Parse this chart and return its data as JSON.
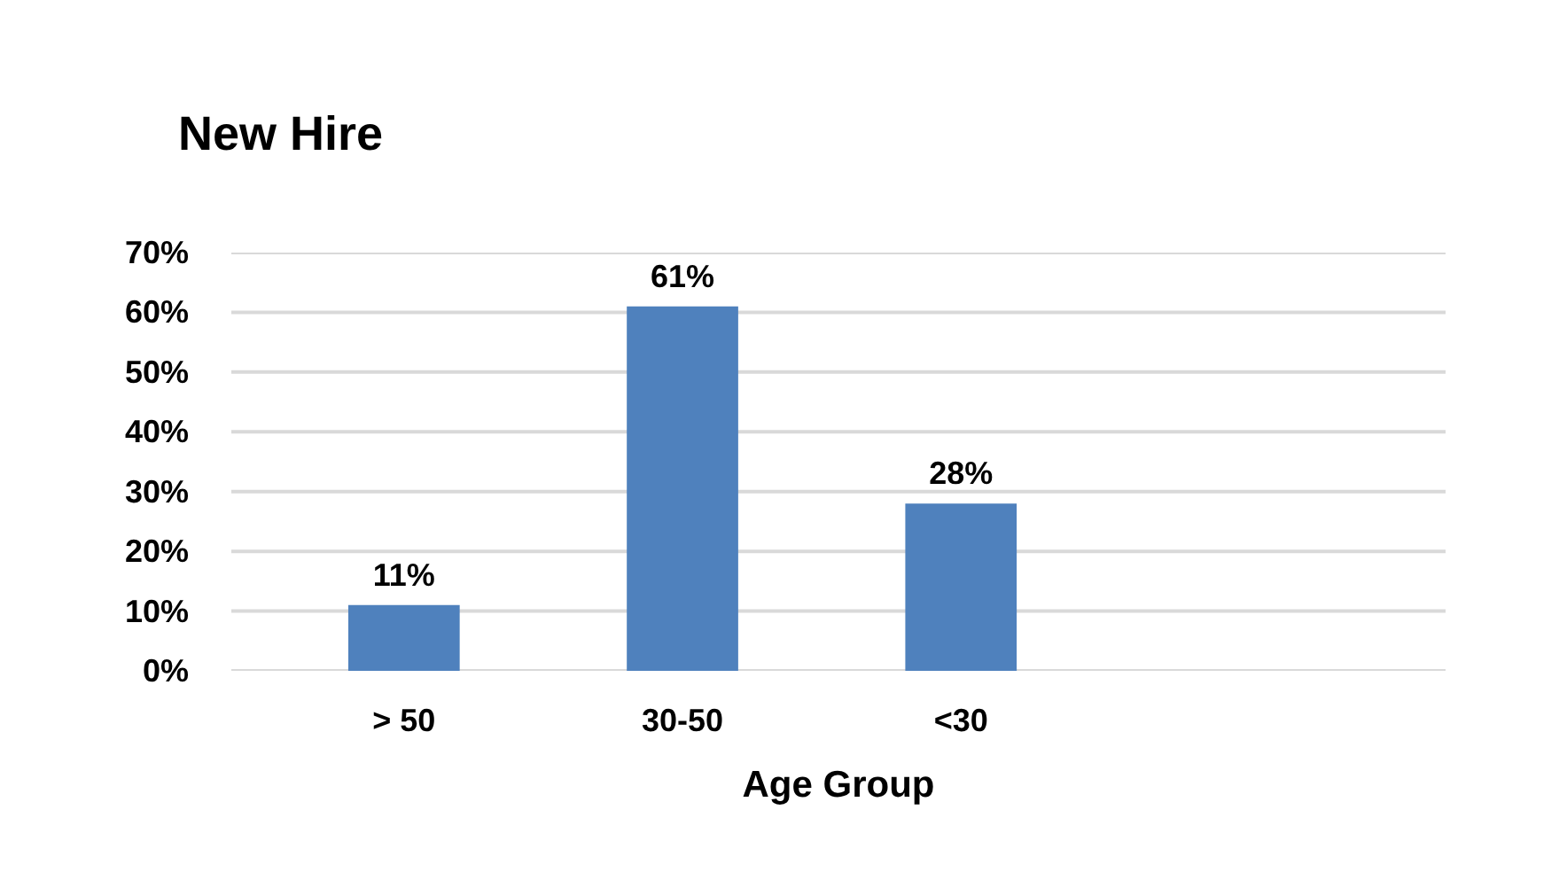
{
  "chart_data": {
    "type": "bar",
    "title": "New Hire",
    "xlabel": "Age Group",
    "categories": [
      "> 50",
      "30-50",
      "<30"
    ],
    "values": [
      11,
      61,
      28
    ],
    "color": "#4f81bd",
    "value_labels": [
      "11%",
      "61%",
      "28%"
    ],
    "ylim": [
      0,
      70
    ],
    "yticks": [
      {
        "value": 0,
        "label": "0%"
      },
      {
        "value": 10,
        "label": "10%"
      },
      {
        "value": 20,
        "label": "20%"
      },
      {
        "value": 30,
        "label": "30%"
      },
      {
        "value": 40,
        "label": "40%"
      },
      {
        "value": 50,
        "label": "50%"
      },
      {
        "value": 60,
        "label": "60%"
      },
      {
        "value": 70,
        "label": "70%"
      }
    ],
    "grid": "y"
  }
}
